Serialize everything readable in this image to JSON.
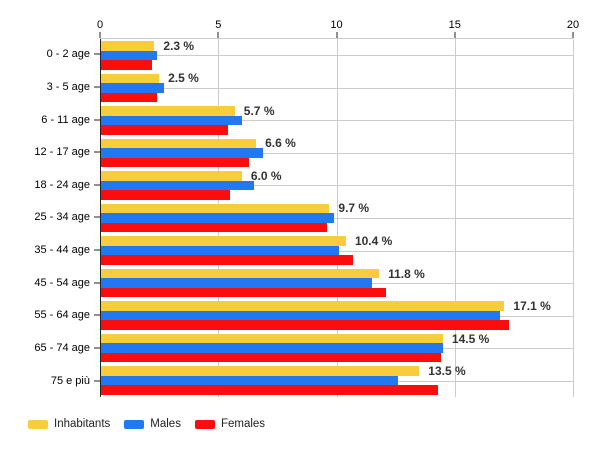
{
  "chart_data": {
    "type": "bar",
    "orientation": "horizontal",
    "title": "",
    "xlabel": "",
    "ylabel": "",
    "xlim": [
      0,
      20
    ],
    "xticks": [
      "0",
      "5",
      "10",
      "15",
      "20"
    ],
    "xaxis_position": "top",
    "grid": true,
    "legend_position": "bottom",
    "categories": [
      "0 - 2 age",
      "3 - 5 age",
      "6 - 11 age",
      "12 - 17 age",
      "18 - 24 age",
      "25 - 34 age",
      "35 - 44 age",
      "45 - 54 age",
      "55 - 64 age",
      "65 - 74 age",
      "75 e più"
    ],
    "series": [
      {
        "name": "Inhabitants",
        "color": "#F8CC3A",
        "values": [
          2.3,
          2.5,
          5.7,
          6.6,
          6.0,
          9.7,
          10.4,
          11.8,
          17.1,
          14.5,
          13.5
        ],
        "labels": [
          "2.3 %",
          "2.5 %",
          "5.7 %",
          "6.6 %",
          "6.0 %",
          "9.7 %",
          "10.4 %",
          "11.8 %",
          "17.1 %",
          "14.5 %",
          "13.5 %"
        ]
      },
      {
        "name": "Males",
        "color": "#2278F0",
        "values": [
          2.4,
          2.7,
          6.0,
          6.9,
          6.5,
          9.9,
          10.1,
          11.5,
          16.9,
          14.5,
          12.6
        ]
      },
      {
        "name": "Females",
        "color": "#FC0D0D",
        "values": [
          2.2,
          2.4,
          5.4,
          6.3,
          5.5,
          9.6,
          10.7,
          12.1,
          17.3,
          14.4,
          14.3
        ]
      }
    ],
    "colors": {
      "gridline": "#cccccc",
      "axis": "#222222",
      "value_label": "#333333"
    }
  }
}
